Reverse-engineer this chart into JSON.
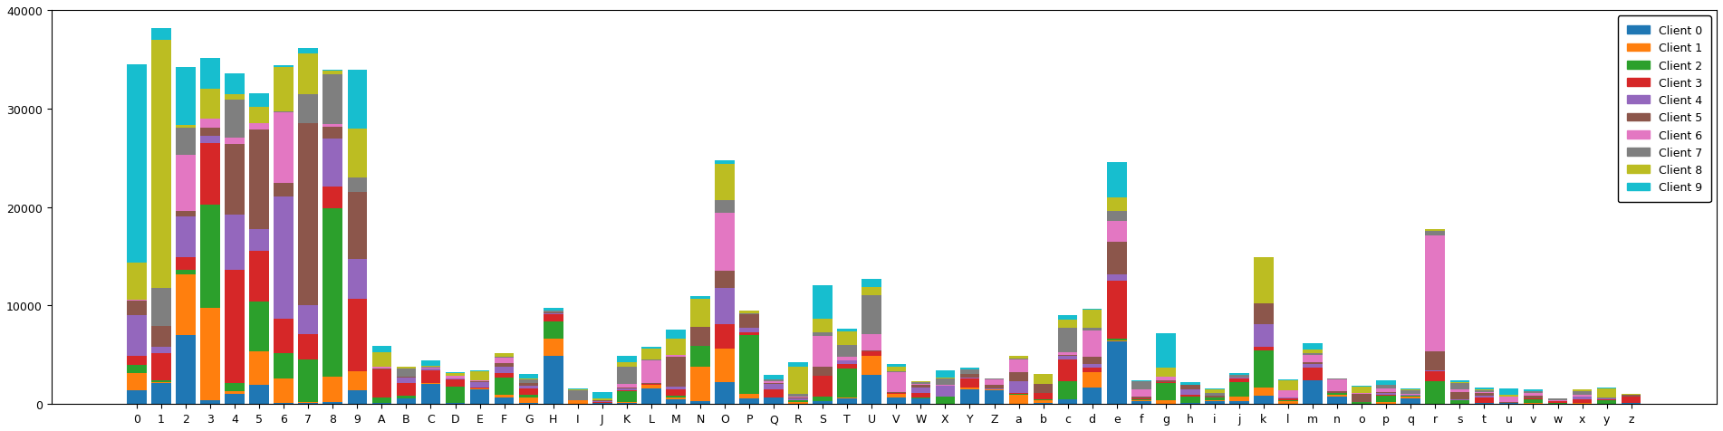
{
  "categories": [
    "0",
    "1",
    "2",
    "3",
    "4",
    "5",
    "6",
    "7",
    "8",
    "9",
    "A",
    "B",
    "C",
    "D",
    "E",
    "F",
    "G",
    "H",
    "I",
    "J",
    "K",
    "L",
    "M",
    "N",
    "O",
    "P",
    "Q",
    "R",
    "S",
    "T",
    "U",
    "V",
    "W",
    "X",
    "Y",
    "Z",
    "a",
    "b",
    "c",
    "d",
    "e",
    "f",
    "g",
    "h",
    "i",
    "j",
    "k",
    "l",
    "m",
    "n",
    "o",
    "p",
    "q",
    "r",
    "s",
    "t",
    "u",
    "v",
    "w",
    "x",
    "y",
    "z"
  ],
  "n_clients": 10,
  "client_colors": [
    "#1f77b4",
    "#ff7f0e",
    "#2ca02c",
    "#d62728",
    "#9467bd",
    "#8c564b",
    "#e377c2",
    "#7f7f7f",
    "#bcbd22",
    "#17becf"
  ],
  "client_labels": [
    "Client 0",
    "Client 1",
    "Client 2",
    "Client 3",
    "Client 4",
    "Client 5",
    "Client 6",
    "Client 7",
    "Client 8",
    "Client 9"
  ],
  "ylim": [
    0,
    40000
  ],
  "yticks": [
    0,
    10000,
    20000,
    30000,
    40000
  ],
  "seed": 0,
  "alpha": 0.5,
  "cat_totals": [
    34500,
    38200,
    34200,
    35100,
    33600,
    31500,
    34400,
    36100,
    33900,
    33900,
    5900,
    3800,
    4400,
    3200,
    3400,
    5200,
    3100,
    9800,
    1600,
    1200,
    4900,
    5800,
    7600,
    11000,
    24700,
    9500,
    3000,
    4300,
    12100,
    7700,
    12700,
    4100,
    2300,
    3400,
    3700,
    2600,
    4900,
    3100,
    9000,
    9700,
    24600,
    2400,
    7200,
    2200,
    1600,
    3200,
    14900,
    2500,
    6200,
    2600,
    1900,
    2400,
    1600,
    17800,
    2400,
    1700,
    1600,
    1500,
    600,
    1500,
    1700,
    1000
  ],
  "background_color": "#ffffff"
}
